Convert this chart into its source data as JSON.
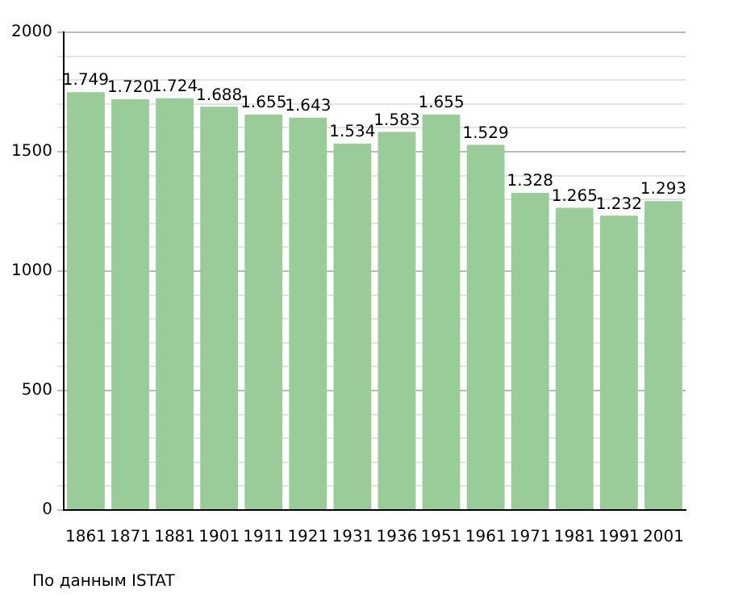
{
  "chart_data": {
    "type": "bar",
    "categories": [
      "1861",
      "1871",
      "1881",
      "1901",
      "1911",
      "1921",
      "1931",
      "1936",
      "1951",
      "1961",
      "1971",
      "1981",
      "1991",
      "2001"
    ],
    "values": [
      1749,
      1720,
      1724,
      1688,
      1655,
      1643,
      1534,
      1583,
      1655,
      1529,
      1328,
      1265,
      1232,
      1293
    ],
    "value_labels": [
      "1.749",
      "1.720",
      "1.724",
      "1.688",
      "1.655",
      "1.643",
      "1.534",
      "1.583",
      "1.655",
      "1.529",
      "1.328",
      "1.265",
      "1.232",
      "1.293"
    ],
    "color": "#99cc99",
    "ylim": [
      0,
      2000
    ],
    "yticks": [
      0,
      {
        "value": 100,
        "label": null
      },
      {
        "value": 200,
        "label": null
      },
      {
        "value": 300,
        "label": null
      },
      {
        "value": 400,
        "label": null
      },
      500,
      {
        "value": 600,
        "label": null
      },
      {
        "value": 700,
        "label": null
      },
      {
        "value": 800,
        "label": null
      },
      {
        "value": 900,
        "label": null
      },
      1000,
      {
        "value": 1100,
        "label": null
      },
      {
        "value": 1200,
        "label": null
      },
      {
        "value": 1300,
        "label": null
      },
      {
        "value": 1400,
        "label": null
      },
      1500,
      {
        "value": 1600,
        "label": null
      },
      {
        "value": 1700,
        "label": null
      },
      {
        "value": 1800,
        "label": null
      },
      {
        "value": 1900,
        "label": null
      },
      2000
    ],
    "grid": "y",
    "legend": false,
    "annotations": [
      "По данным ISTAT"
    ]
  }
}
